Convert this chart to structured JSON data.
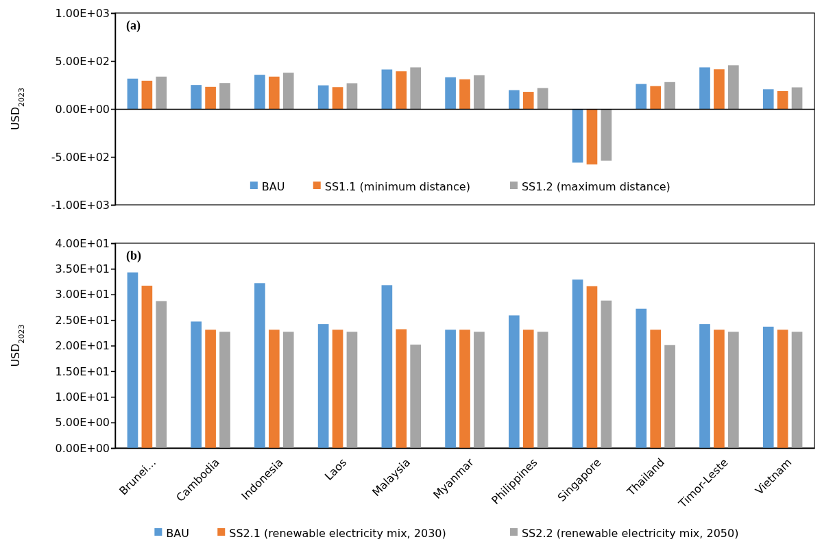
{
  "chart_data": [
    {
      "type": "bar",
      "title": "(a)",
      "ylabel": "USD$_{2023}$",
      "categories": [
        null,
        null,
        null,
        null,
        null,
        null,
        null,
        null,
        null,
        null,
        null
      ],
      "series": [
        {
          "name": "BAU",
          "color": "#5b9bd5",
          "values": [
            316,
            249,
            356,
            246,
            411,
            330,
            196,
            -560,
            260,
            433,
            205
          ]
        },
        {
          "name": "SS1.1 (minimum distance)",
          "color": "#ed7d31",
          "values": [
            294,
            230,
            337,
            227,
            392,
            309,
            178,
            -579,
            238,
            413,
            186
          ]
        },
        {
          "name": "SS1.2 (maximum distance)",
          "color": "#a5a5a5",
          "values": [
            337,
            270,
            378,
            268,
            433,
            351,
            218,
            -540,
            280,
            455,
            225
          ]
        }
      ],
      "ylim": [
        -1000,
        1000
      ],
      "yticks": [
        {
          "value": -1000,
          "label": "-1.00E+03"
        },
        {
          "value": -500,
          "label": "-5.00E+02"
        },
        {
          "value": 0,
          "label": "0.00E+00"
        },
        {
          "value": 500,
          "label": "5.00E+02"
        },
        {
          "value": 1000,
          "label": "1.00E+03"
        }
      ],
      "tick_labels": "y",
      "legend": "bottom"
    },
    {
      "type": "bar",
      "title": "(b)",
      "ylabel": "USD$_{2023}$",
      "categories": [
        "Brunei...",
        "Cambodia",
        "Indonesia",
        "Laos",
        "Malaysia",
        "Myanmar",
        "Philippines",
        "Singapore",
        "Thailand",
        "Timor-Leste",
        "Vietnam"
      ],
      "series": [
        {
          "name": "BAU",
          "color": "#5b9bd5",
          "values": [
            34.3,
            24.7,
            32.2,
            24.2,
            31.8,
            23.1,
            25.9,
            32.9,
            27.2,
            24.2,
            23.7
          ]
        },
        {
          "name": "SS2.1 (renewable electricity mix, 2030)",
          "color": "#ed7d31",
          "values": [
            31.7,
            23.1,
            23.1,
            23.1,
            23.2,
            23.1,
            23.1,
            31.6,
            23.1,
            23.1,
            23.1
          ]
        },
        {
          "name": "SS2.2 (renewable electricity mix, 2050)",
          "color": "#a5a5a5",
          "values": [
            28.7,
            22.7,
            22.7,
            22.7,
            20.2,
            22.7,
            22.7,
            28.8,
            20.1,
            22.7,
            22.7
          ]
        }
      ],
      "ylim": [
        0,
        40
      ],
      "yticks": [
        {
          "value": 0,
          "label": "0.00E+00"
        },
        {
          "value": 5,
          "label": "5.00E+00"
        },
        {
          "value": 10,
          "label": "1.00E+01"
        },
        {
          "value": 15,
          "label": "1.50E+01"
        },
        {
          "value": 20,
          "label": "2.00E+01"
        },
        {
          "value": 25,
          "label": "2.50E+01"
        },
        {
          "value": 30,
          "label": "3.00E+01"
        },
        {
          "value": 35,
          "label": "3.50E+01"
        },
        {
          "value": 40,
          "label": "4.00E+01"
        }
      ],
      "legend": "bottom"
    }
  ]
}
